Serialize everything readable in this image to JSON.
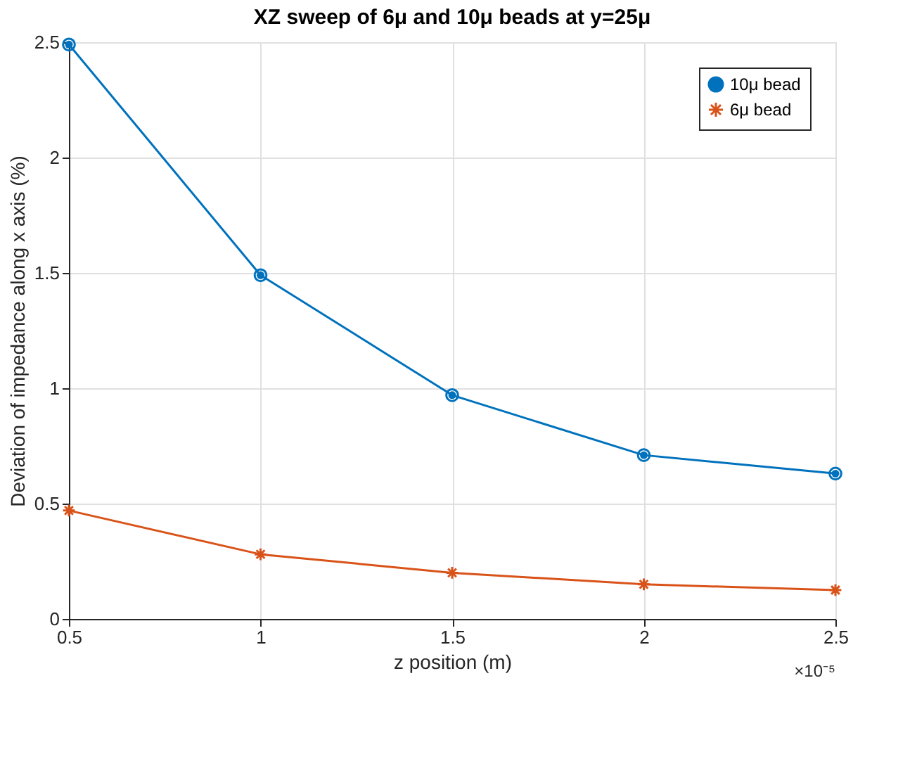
{
  "chart_data": {
    "type": "line",
    "title": "XZ sweep of 6μ and 10μ beads at y=25μ",
    "xlabel": "z position (m)",
    "ylabel": "Deviation of impedance along x axis (%)",
    "x": [
      0.5,
      1,
      1.5,
      2,
      2.5
    ],
    "series": [
      {
        "name": "10μ bead",
        "color": "#0072bd",
        "marker": "circle",
        "values": [
          2.49,
          1.49,
          0.97,
          0.71,
          0.63
        ]
      },
      {
        "name": "6μ bead",
        "color": "#d95319",
        "marker": "cross",
        "values": [
          0.47,
          0.28,
          0.2,
          0.15,
          0.125
        ]
      }
    ],
    "xlim": [
      0.5,
      2.5
    ],
    "xticks": [
      0.5,
      1,
      1.5,
      2,
      2.5
    ],
    "ylim": [
      0,
      2.5
    ],
    "yticks": [
      0,
      0.5,
      1,
      1.5,
      2,
      2.5
    ],
    "grid": true,
    "legend": "top right",
    "line_style": "solid",
    "annotations": [
      "×10⁻⁵"
    ]
  }
}
